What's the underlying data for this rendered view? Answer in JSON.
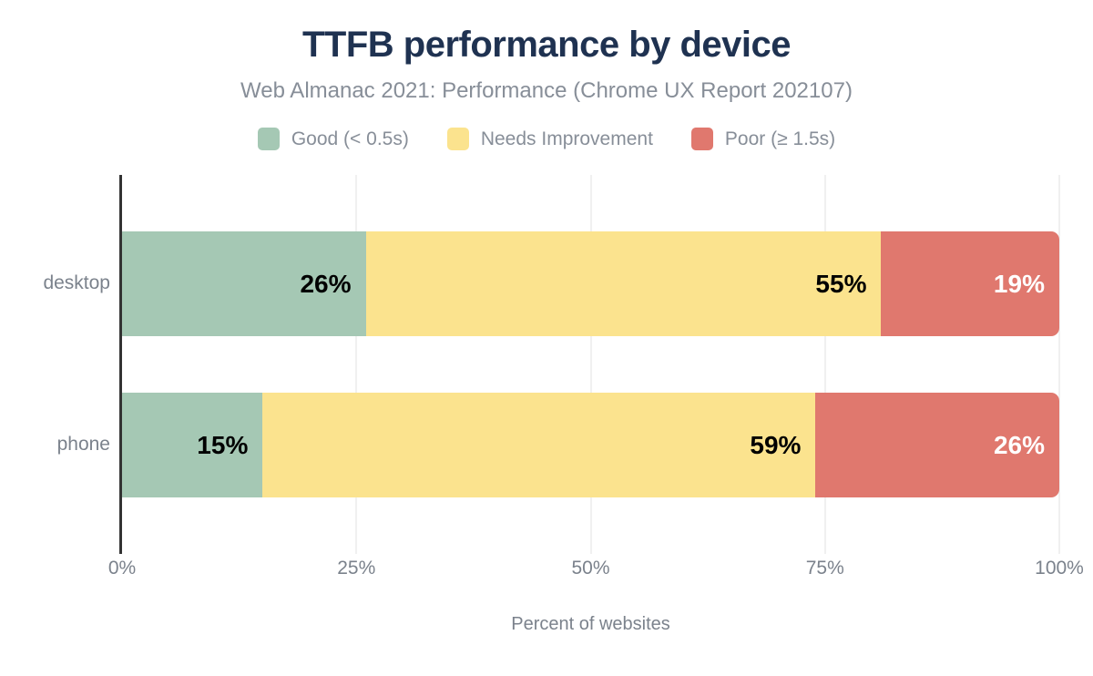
{
  "chart_data": {
    "type": "bar",
    "orientation": "horizontal",
    "stacked": true,
    "title": "TTFB performance by device",
    "subtitle": "Web Almanac 2021: Performance (Chrome UX Report 202107)",
    "xlabel": "Percent of websites",
    "categories": [
      "desktop",
      "phone"
    ],
    "series": [
      {
        "name": "Good (< 0.5s)",
        "color": "#a5c8b4",
        "label_color": "#000000",
        "values": [
          26,
          15
        ]
      },
      {
        "name": "Needs Improvement",
        "color": "#fbe38e",
        "label_color": "#000000",
        "values": [
          55,
          59
        ]
      },
      {
        "name": "Poor (≥ 1.5s)",
        "color": "#e0786e",
        "label_color": "#ffffff",
        "values": [
          19,
          26
        ]
      }
    ],
    "x_ticks": [
      "0%",
      "25%",
      "50%",
      "75%",
      "100%"
    ],
    "x_tick_values": [
      0,
      25,
      50,
      75,
      100
    ],
    "xlim": [
      0,
      100
    ],
    "value_suffix": "%",
    "legend_position": "top",
    "grid": true
  },
  "colors": {
    "background": "#ffffff",
    "title": "#1f3251",
    "subtitle": "#878e98",
    "axis_text": "#7b828c",
    "axis_line": "#333333",
    "gridline": "#f0f0f0"
  }
}
